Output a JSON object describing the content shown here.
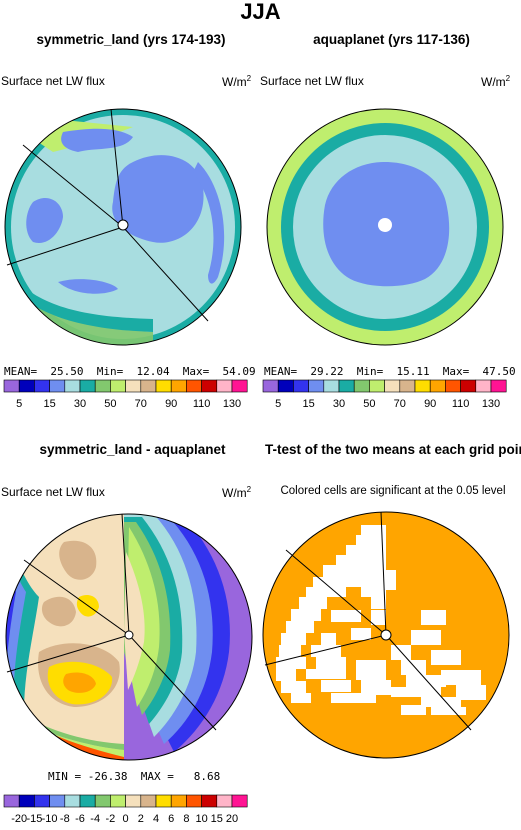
{
  "page_title": "JJA",
  "colors": {
    "levels_a": [
      "#9966dd",
      "#0000bb",
      "#3333ee",
      "#6f8ef0",
      "#a8dde0",
      "#1aaca4",
      "#82c86e",
      "#bfee6e",
      "#f5e0bc",
      "#d8b48c",
      "#ffdd00",
      "#ffa500",
      "#ff5500",
      "#cc0000",
      "#ffb4c8",
      "#ff1493"
    ],
    "levels_b": [
      "#9966dd",
      "#0000bb",
      "#3333ee",
      "#6f8ef0",
      "#a8dde0",
      "#1aaca4",
      "#82c86e",
      "#bfee6e",
      "#f5e0bc",
      "#d8b48c",
      "#ffdd00",
      "#ffa500",
      "#ff5500",
      "#cc0000",
      "#ffb4c8",
      "#ff1493"
    ],
    "significant": "#ffa500"
  },
  "panels": [
    {
      "title": "symmetric_land (yrs 174-193)",
      "left_label": "Surface net LW flux",
      "units": "W/m",
      "units_exp": "2",
      "stats": "MEAN=  25.50  Min=  12.04  Max=  54.09",
      "colorbar_labels": [
        "5",
        "15",
        "30",
        "50",
        "70",
        "90",
        "110",
        "130"
      ]
    },
    {
      "title": "aquaplanet (yrs 117-136)",
      "left_label": "Surface net LW flux",
      "units": "W/m",
      "units_exp": "2",
      "stats": "MEAN=  29.22  Min=  15.11  Max=  47.50",
      "colorbar_labels": [
        "5",
        "15",
        "30",
        "50",
        "70",
        "90",
        "110",
        "130"
      ]
    },
    {
      "title": "symmetric_land - aquaplanet",
      "left_label": "Surface net LW flux",
      "units": "W/m",
      "units_exp": "2",
      "stats": "MIN = -26.38  MAX =   8.68",
      "colorbar_labels": [
        "-20",
        "-15",
        "-10",
        "-8",
        "-6",
        "-4",
        "-2",
        "0",
        "2",
        "4",
        "6",
        "8",
        "10",
        "15",
        "20"
      ]
    },
    {
      "title": "T-test of the two means at each grid point",
      "subtitle": "Colored cells are significant at the 0.05 level"
    }
  ],
  "chart_data": [
    {
      "type": "heatmap",
      "title": "symmetric_land (yrs 174-193)",
      "field": "Surface net LW flux",
      "units": "W/m2",
      "projection": "polar",
      "stats": {
        "mean": 25.5,
        "min": 12.04,
        "max": 54.09
      },
      "contour_levels": [
        5,
        10,
        15,
        20,
        30,
        40,
        50,
        60,
        70,
        80,
        90,
        100,
        110,
        120,
        130
      ],
      "color_legend": "horizontal-below"
    },
    {
      "type": "heatmap",
      "title": "aquaplanet (yrs 117-136)",
      "field": "Surface net LW flux",
      "units": "W/m2",
      "projection": "polar",
      "stats": {
        "mean": 29.22,
        "min": 15.11,
        "max": 47.5
      },
      "contour_levels": [
        5,
        10,
        15,
        20,
        30,
        40,
        50,
        60,
        70,
        80,
        90,
        100,
        110,
        120,
        130
      ],
      "color_legend": "horizontal-below"
    },
    {
      "type": "heatmap",
      "title": "symmetric_land - aquaplanet",
      "field": "Surface net LW flux",
      "units": "W/m2",
      "projection": "polar",
      "stats": {
        "min": -26.38,
        "max": 8.68
      },
      "contour_levels": [
        -20,
        -15,
        -10,
        -8,
        -6,
        -4,
        -2,
        0,
        2,
        4,
        6,
        8,
        10,
        15,
        20
      ],
      "color_legend": "horizontal-below"
    },
    {
      "type": "heatmap",
      "title": "T-test of the two means at each grid point",
      "projection": "polar",
      "significance_level": 0.05,
      "note": "Colored cells are significant at the 0.05 level"
    }
  ]
}
